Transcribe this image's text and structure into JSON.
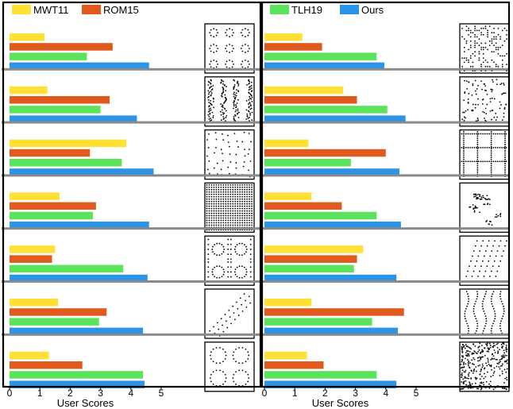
{
  "chart_data": {
    "type": "bar",
    "orientation": "horizontal",
    "xlabel": "User Scores",
    "xticks": [
      0,
      1,
      2,
      3,
      4,
      5
    ],
    "xlim": [
      0,
      5
    ],
    "grid": false,
    "legend_placement": "top",
    "colors": {
      "MWT11": "#FFE033",
      "ROM15": "#E05A1E",
      "TLH19": "#5CE35C",
      "Ours": "#2A94E8"
    },
    "legend": [
      {
        "name": "MWT11",
        "panel": 0
      },
      {
        "name": "ROM15",
        "panel": 0
      },
      {
        "name": "TLH19",
        "panel": 1
      },
      {
        "name": "Ours",
        "panel": 1
      }
    ],
    "series_names": [
      "MWT11",
      "ROM15",
      "TLH19",
      "Ours"
    ],
    "panels": [
      {
        "rows": [
          {
            "pattern": "grid-of-dot-squares",
            "values": [
              1.15,
              3.4,
              2.55,
              4.6
            ]
          },
          {
            "pattern": "dense-vertical-stripes",
            "values": [
              1.25,
              3.3,
              3.0,
              4.2
            ]
          },
          {
            "pattern": "blue-noise-dots",
            "values": [
              3.85,
              2.65,
              3.7,
              4.75
            ]
          },
          {
            "pattern": "regular-dense-grid",
            "values": [
              1.65,
              2.85,
              2.75,
              4.6
            ]
          },
          {
            "pattern": "circles-in-quadrants",
            "values": [
              1.5,
              1.4,
              3.75,
              4.55
            ]
          },
          {
            "pattern": "diagonal-dotted-lines",
            "values": [
              1.6,
              3.2,
              2.95,
              4.4
            ]
          },
          {
            "pattern": "four-dotted-circles",
            "values": [
              1.3,
              2.4,
              4.4,
              4.45
            ]
          }
        ]
      },
      {
        "rows": [
          {
            "pattern": "grid-of-dot-squares",
            "values": [
              1.25,
              1.9,
              3.7,
              3.95
            ]
          },
          {
            "pattern": "dense-vertical-stripes",
            "values": [
              2.6,
              3.05,
              4.05,
              4.65
            ]
          },
          {
            "pattern": "blue-noise-dots",
            "values": [
              1.45,
              4.0,
              2.85,
              4.45
            ]
          },
          {
            "pattern": "regular-dense-grid",
            "values": [
              1.55,
              2.55,
              3.7,
              4.5
            ]
          },
          {
            "pattern": "circles-in-quadrants",
            "values": [
              3.25,
              3.05,
              2.95,
              4.35
            ]
          },
          {
            "pattern": "diagonal-dotted-lines",
            "values": [
              1.55,
              4.6,
              3.55,
              4.4
            ]
          },
          {
            "pattern": "four-dotted-circles",
            "values": [
              1.4,
              1.95,
              3.7,
              4.35
            ]
          }
        ]
      }
    ]
  }
}
